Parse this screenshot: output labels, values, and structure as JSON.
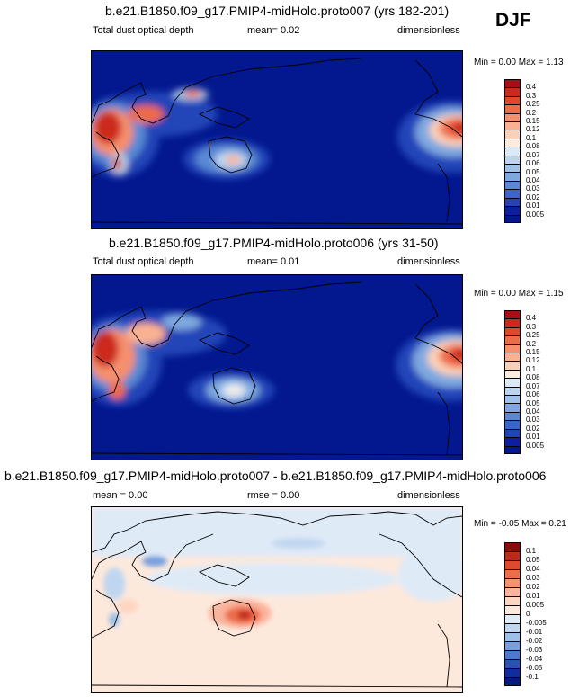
{
  "season": "DJF",
  "panels": [
    {
      "title": "b.e21.B1850.f09_g17.PMIP4-midHolo.proto007 (yrs 182-201)",
      "left_label": "Total dust optical depth",
      "mid_label": "mean=  0.02",
      "right_label": "dimensionless",
      "minmax": "Min =  0.00 Max =  1.13",
      "levels": [
        "0.4",
        "0.3",
        "0.25",
        "0.2",
        "0.15",
        "0.12",
        "0.1",
        "0.08",
        "0.07",
        "0.06",
        "0.05",
        "0.04",
        "0.03",
        "0.02",
        "0.01",
        "0.005"
      ],
      "colors": [
        "#a50f15",
        "#cb2a1b",
        "#e2462c",
        "#ef6b48",
        "#f58f6d",
        "#f9b191",
        "#fcd0b6",
        "#fdebdb",
        "#dbe9f6",
        "#bdd4ee",
        "#9ec2e8",
        "#7ea8df",
        "#5a89d4",
        "#3b66c9",
        "#2244b8",
        "#0b1fa3",
        "#03188f"
      ]
    },
    {
      "title": "b.e21.B1850.f09_g17.PMIP4-midHolo.proto006 (yrs 31-50)",
      "left_label": "Total dust optical depth",
      "mid_label": "mean=  0.01",
      "right_label": "dimensionless",
      "minmax": "Min =  0.00 Max =  1.15",
      "levels": [
        "0.4",
        "0.3",
        "0.25",
        "0.2",
        "0.15",
        "0.12",
        "0.1",
        "0.08",
        "0.07",
        "0.06",
        "0.05",
        "0.04",
        "0.03",
        "0.02",
        "0.01",
        "0.005"
      ],
      "colors": [
        "#a50f15",
        "#cb2a1b",
        "#e2462c",
        "#ef6b48",
        "#f58f6d",
        "#f9b191",
        "#fcd0b6",
        "#fdebdb",
        "#dbe9f6",
        "#bdd4ee",
        "#9ec2e8",
        "#7ea8df",
        "#5a89d4",
        "#3b66c9",
        "#2244b8",
        "#0b1fa3",
        "#03188f"
      ]
    },
    {
      "title": "b.e21.B1850.f09_g17.PMIP4-midHolo.proto007 - b.e21.B1850.f09_g17.PMIP4-midHolo.proto006",
      "left_label": "mean =   0.00",
      "mid_label": "rmse =   0.00",
      "right_label": "dimensionless",
      "minmax": "Min = -0.05 Max =  0.21",
      "levels": [
        "0.1",
        "0.05",
        "0.04",
        "0.03",
        "0.02",
        "0.01",
        "0.005",
        "0",
        "-0.005",
        "-0.01",
        "-0.02",
        "-0.03",
        "-0.04",
        "-0.05",
        "-0.1"
      ],
      "colors": [
        "#8b0a0a",
        "#c0281a",
        "#de4a2c",
        "#ee6d4c",
        "#f69273",
        "#fab49b",
        "#fdd6c2",
        "#fde9dc",
        "#dfeaf7",
        "#c0d6f0",
        "#9dbfe8",
        "#779fdd",
        "#4f79cd",
        "#2c50b6",
        "#0f2e9c",
        "#041a7c"
      ]
    }
  ]
}
